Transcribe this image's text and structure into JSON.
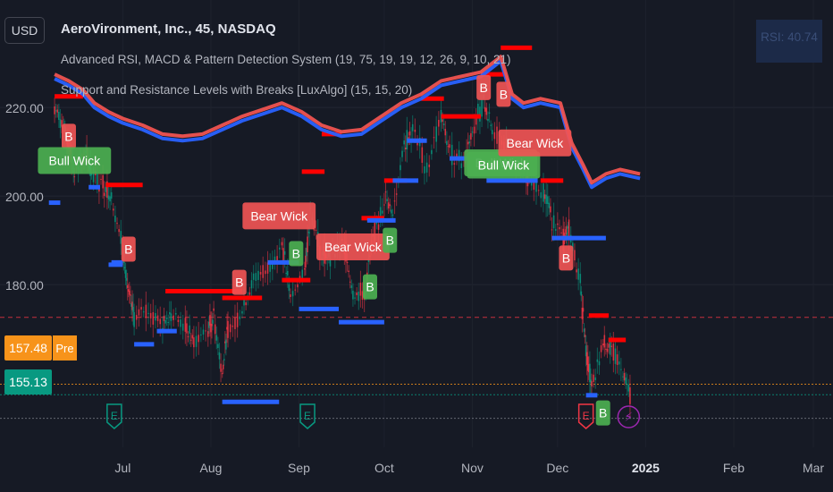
{
  "header": {
    "currency": "USD",
    "title": "AeroVironment, Inc., 45, NASDAQ",
    "indicators": [
      "Advanced RSI, MACD & Pattern Detection System (19, 75, 19, 19, 12, 26, 9, 10, 21)",
      "Support and Resistance Levels with Breaks [LuxAlgo] (15, 15, 20)"
    ],
    "rsi_readout": "RSI: 40.74"
  },
  "price_badges": {
    "premarket": {
      "value": "157.48",
      "label": "Pre",
      "color": "#f7931a"
    },
    "last": {
      "value": "155.13",
      "color": "#089981"
    }
  },
  "chart_data": {
    "type": "line",
    "title": "AeroVironment, Inc., 45, NASDAQ",
    "y_ticks": [
      220,
      200,
      180
    ],
    "y_tick_labels": [
      "220.00",
      "200.00",
      "180.00"
    ],
    "x_tick_labels": [
      "Jul",
      "Aug",
      "Sep",
      "Oct",
      "Nov",
      "Dec",
      "2025",
      "Feb",
      "Mar"
    ],
    "ylim": [
      148.5,
      236
    ],
    "reference_lines": [
      {
        "name": "dashed-red",
        "value": 172.6,
        "color": "#f23645"
      },
      {
        "name": "premarket",
        "value": 157.48,
        "color": "#f7931a"
      },
      {
        "name": "last",
        "value": 155.13,
        "color": "#089981"
      },
      {
        "name": "grey-low",
        "value": 149.8,
        "color": "#787b86"
      }
    ],
    "price": [
      [
        "2024-06-07",
        220
      ],
      [
        "2024-06-10",
        216
      ],
      [
        "2024-06-12",
        212
      ],
      [
        "2024-06-14",
        206
      ],
      [
        "2024-06-18",
        209
      ],
      [
        "2024-06-20",
        205
      ],
      [
        "2024-06-24",
        203
      ],
      [
        "2024-06-27",
        200
      ],
      [
        "2024-07-01",
        188
      ],
      [
        "2024-07-03",
        178
      ],
      [
        "2024-07-05",
        172
      ],
      [
        "2024-07-10",
        175
      ],
      [
        "2024-07-15",
        171
      ],
      [
        "2024-07-18",
        174
      ],
      [
        "2024-07-23",
        170
      ],
      [
        "2024-07-26",
        167
      ],
      [
        "2024-07-31",
        170
      ],
      [
        "2024-08-02",
        173
      ],
      [
        "2024-08-05",
        160
      ],
      [
        "2024-08-07",
        170
      ],
      [
        "2024-08-12",
        174
      ],
      [
        "2024-08-16",
        181
      ],
      [
        "2024-08-21",
        184
      ],
      [
        "2024-08-26",
        189
      ],
      [
        "2024-08-29",
        177
      ],
      [
        "2024-09-03",
        183
      ],
      [
        "2024-09-05",
        197
      ],
      [
        "2024-09-09",
        186
      ],
      [
        "2024-09-12",
        187
      ],
      [
        "2024-09-17",
        189
      ],
      [
        "2024-09-20",
        178
      ],
      [
        "2024-09-24",
        178
      ],
      [
        "2024-09-27",
        190
      ],
      [
        "2024-10-01",
        200
      ],
      [
        "2024-10-04",
        196
      ],
      [
        "2024-10-08",
        212
      ],
      [
        "2024-10-11",
        215
      ],
      [
        "2024-10-16",
        206
      ],
      [
        "2024-10-21",
        218
      ],
      [
        "2024-10-24",
        210
      ],
      [
        "2024-10-29",
        208
      ],
      [
        "2024-11-01",
        215
      ],
      [
        "2024-11-05",
        221
      ],
      [
        "2024-11-08",
        215
      ],
      [
        "2024-11-13",
        211
      ],
      [
        "2024-11-18",
        205
      ],
      [
        "2024-11-21",
        204
      ],
      [
        "2024-11-26",
        201
      ],
      [
        "2024-11-29",
        195
      ],
      [
        "2024-12-03",
        190
      ],
      [
        "2024-12-05",
        193
      ],
      [
        "2024-12-09",
        180
      ],
      [
        "2024-12-11",
        165
      ],
      [
        "2024-12-13",
        157
      ],
      [
        "2024-12-17",
        167
      ],
      [
        "2024-12-20",
        165
      ],
      [
        "2024-12-24",
        160
      ],
      [
        "2024-12-27",
        155
      ]
    ],
    "series": [
      {
        "color": "#ef5350",
        "points": [
          [
            "2024-06-07",
            227.5
          ],
          [
            "2024-06-12",
            226
          ],
          [
            "2024-06-17",
            224
          ],
          [
            "2024-06-21",
            221
          ],
          [
            "2024-06-26",
            219
          ],
          [
            "2024-07-01",
            217.5
          ],
          [
            "2024-07-08",
            216
          ],
          [
            "2024-07-15",
            214
          ],
          [
            "2024-07-22",
            213.5
          ],
          [
            "2024-07-29",
            214
          ],
          [
            "2024-08-05",
            216
          ],
          [
            "2024-08-12",
            218
          ],
          [
            "2024-08-19",
            219.5
          ],
          [
            "2024-08-26",
            221
          ],
          [
            "2024-09-02",
            219
          ],
          [
            "2024-09-09",
            216
          ],
          [
            "2024-09-16",
            214.5
          ],
          [
            "2024-09-23",
            215
          ],
          [
            "2024-09-30",
            218
          ],
          [
            "2024-10-07",
            221
          ],
          [
            "2024-10-14",
            223
          ],
          [
            "2024-10-21",
            226
          ],
          [
            "2024-10-28",
            227
          ],
          [
            "2024-11-04",
            228
          ],
          [
            "2024-11-11",
            231.5
          ],
          [
            "2024-11-15",
            223
          ],
          [
            "2024-11-19",
            221
          ],
          [
            "2024-11-25",
            222
          ],
          [
            "2024-12-02",
            221
          ],
          [
            "2024-12-06",
            212
          ],
          [
            "2024-12-10",
            207
          ],
          [
            "2024-12-13",
            203
          ],
          [
            "2024-12-18",
            205
          ],
          [
            "2024-12-23",
            206
          ],
          [
            "2024-12-30",
            205
          ]
        ]
      },
      {
        "color": "#2962ff",
        "points": [
          [
            "2024-06-07",
            226.5
          ],
          [
            "2024-06-12",
            225
          ],
          [
            "2024-06-17",
            223
          ],
          [
            "2024-06-21",
            220
          ],
          [
            "2024-06-26",
            218
          ],
          [
            "2024-07-01",
            216.5
          ],
          [
            "2024-07-08",
            215
          ],
          [
            "2024-07-15",
            213
          ],
          [
            "2024-07-22",
            212.5
          ],
          [
            "2024-07-29",
            213
          ],
          [
            "2024-08-05",
            215
          ],
          [
            "2024-08-12",
            217
          ],
          [
            "2024-08-19",
            218.5
          ],
          [
            "2024-08-26",
            220
          ],
          [
            "2024-09-02",
            218
          ],
          [
            "2024-09-09",
            215
          ],
          [
            "2024-09-16",
            213.5
          ],
          [
            "2024-09-23",
            214
          ],
          [
            "2024-09-30",
            217
          ],
          [
            "2024-10-07",
            220
          ],
          [
            "2024-10-14",
            222
          ],
          [
            "2024-10-21",
            225
          ],
          [
            "2024-10-28",
            226
          ],
          [
            "2024-11-04",
            227
          ],
          [
            "2024-11-11",
            230.5
          ],
          [
            "2024-11-15",
            222
          ],
          [
            "2024-11-19",
            220
          ],
          [
            "2024-11-25",
            221
          ],
          [
            "2024-12-02",
            220
          ],
          [
            "2024-12-06",
            211
          ],
          [
            "2024-12-10",
            206
          ],
          [
            "2024-12-13",
            202
          ],
          [
            "2024-12-18",
            204
          ],
          [
            "2024-12-23",
            205
          ],
          [
            "2024-12-30",
            204
          ]
        ]
      }
    ],
    "resistance_segments": [
      [
        "2024-06-07",
        "2024-06-17",
        222.5
      ],
      [
        "2024-06-25",
        "2024-07-08",
        202.5
      ],
      [
        "2024-07-16",
        "2024-08-12",
        178.5
      ],
      [
        "2024-08-05",
        "2024-08-19",
        177
      ],
      [
        "2024-08-26",
        "2024-09-05",
        181
      ],
      [
        "2024-09-02",
        "2024-09-10",
        205.5
      ],
      [
        "2024-09-09",
        "2024-09-16",
        214
      ],
      [
        "2024-09-23",
        "2024-10-01",
        195
      ],
      [
        "2024-10-01",
        "2024-10-09",
        203.5
      ],
      [
        "2024-10-14",
        "2024-10-22",
        222
      ],
      [
        "2024-10-21",
        "2024-11-04",
        218
      ],
      [
        "2024-11-04",
        "2024-11-12",
        227.5
      ],
      [
        "2024-11-11",
        "2024-11-22",
        233.5
      ],
      [
        "2024-11-25",
        "2024-12-03",
        203.5
      ],
      [
        "2024-12-12",
        "2024-12-19",
        173
      ],
      [
        "2024-12-19",
        "2024-12-25",
        167.5
      ]
    ],
    "support_segments": [
      [
        "2024-06-05",
        "2024-06-09",
        198.5
      ],
      [
        "2024-06-19",
        "2024-06-23",
        202
      ],
      [
        "2024-06-26",
        "2024-07-01",
        184.5
      ],
      [
        "2024-06-27",
        "2024-07-01",
        185
      ],
      [
        "2024-07-05",
        "2024-07-12",
        166.5
      ],
      [
        "2024-07-13",
        "2024-07-20",
        169.5
      ],
      [
        "2024-08-05",
        "2024-08-25",
        153.5
      ],
      [
        "2024-08-21",
        "2024-09-01",
        185
      ],
      [
        "2024-09-01",
        "2024-09-15",
        174.5
      ],
      [
        "2024-09-15",
        "2024-10-01",
        171.5
      ],
      [
        "2024-09-25",
        "2024-10-05",
        194.5
      ],
      [
        "2024-10-04",
        "2024-10-13",
        203.5
      ],
      [
        "2024-10-09",
        "2024-10-16",
        212.5
      ],
      [
        "2024-10-24",
        "2024-11-04",
        208.5
      ],
      [
        "2024-11-06",
        "2024-11-24",
        203.5
      ],
      [
        "2024-11-29",
        "2024-12-18",
        190.5
      ],
      [
        "2024-12-11",
        "2024-12-15",
        155
      ]
    ],
    "labels": [
      {
        "text": "B",
        "kind": "bear",
        "date": "2024-06-12",
        "value": 213.5
      },
      {
        "text": "Bull Wick",
        "kind": "bull",
        "date": "2024-06-14",
        "value": 208
      },
      {
        "text": "B",
        "kind": "bear",
        "date": "2024-07-03",
        "value": 188
      },
      {
        "text": "B",
        "kind": "bear",
        "date": "2024-08-11",
        "value": 180.5
      },
      {
        "text": "Bear Wick",
        "kind": "bear",
        "date": "2024-08-25",
        "value": 195.5
      },
      {
        "text": "B",
        "kind": "bull",
        "date": "2024-08-31",
        "value": 187
      },
      {
        "text": "Bear Wick",
        "kind": "bear",
        "date": "2024-09-20",
        "value": 188.5
      },
      {
        "text": "B",
        "kind": "bull",
        "date": "2024-09-26",
        "value": 179.5
      },
      {
        "text": "B",
        "kind": "bull",
        "date": "2024-10-03",
        "value": 190
      },
      {
        "text": "B",
        "kind": "bear",
        "date": "2024-11-05",
        "value": 224.5
      },
      {
        "text": "B",
        "kind": "bear",
        "date": "2024-11-12",
        "value": 223
      },
      {
        "text": "Bull Wick",
        "kind": "bull",
        "date": "2024-11-11",
        "value": 207.5
      },
      {
        "text": "Bull Wick",
        "kind": "bull",
        "date": "2024-11-12",
        "value": 207
      },
      {
        "text": "Bear Wick",
        "kind": "bear",
        "date": "2024-11-23",
        "value": 212
      },
      {
        "text": "B",
        "kind": "bear",
        "date": "2024-12-04",
        "value": 186
      },
      {
        "text": "B",
        "kind": "bull",
        "date": "2024-12-17",
        "value": 151
      }
    ],
    "events": [
      {
        "type": "earnings",
        "text": "E",
        "date": "2024-06-28",
        "color": "#089981"
      },
      {
        "type": "earnings",
        "text": "E",
        "date": "2024-09-04",
        "color": "#089981"
      },
      {
        "type": "earnings",
        "text": "E",
        "date": "2024-12-11",
        "color": "#f23645"
      },
      {
        "type": "dividend",
        "text": "⚡",
        "date": "2024-12-26",
        "color": "#9c27b0"
      }
    ]
  }
}
